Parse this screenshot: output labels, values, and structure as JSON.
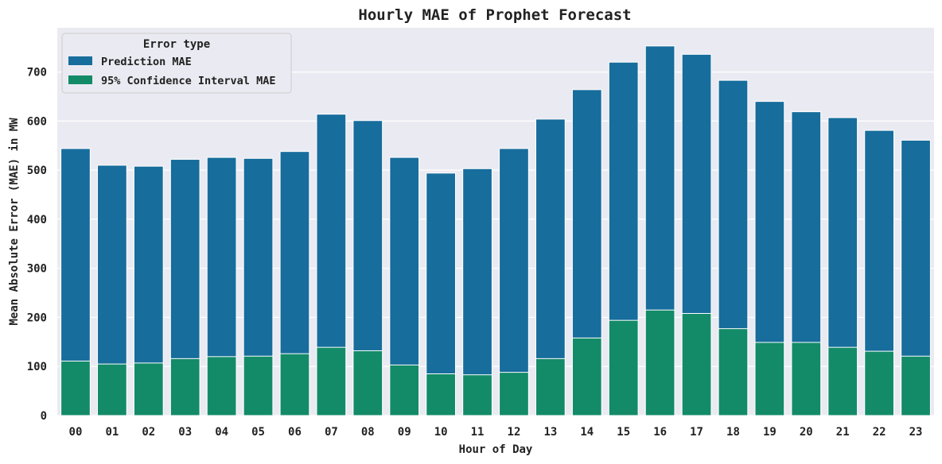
{
  "chart_data": {
    "type": "bar",
    "title": "Hourly MAE of Prophet Forecast",
    "xlabel": "Hour of Day",
    "ylabel": "Mean Absolute Error (MAE) in MW",
    "categories": [
      "00",
      "01",
      "02",
      "03",
      "04",
      "05",
      "06",
      "07",
      "08",
      "09",
      "10",
      "11",
      "12",
      "13",
      "14",
      "15",
      "16",
      "17",
      "18",
      "19",
      "20",
      "21",
      "22",
      "23"
    ],
    "ylim": [
      0,
      790
    ],
    "yticks": [
      0,
      100,
      200,
      300,
      400,
      500,
      600,
      700
    ],
    "grid": true,
    "legend": {
      "title": "Error type",
      "placement": "top-left"
    },
    "series": [
      {
        "name": "Prediction MAE",
        "color": "#176d9c",
        "values": [
          544,
          510,
          508,
          522,
          526,
          524,
          538,
          614,
          601,
          526,
          494,
          503,
          544,
          604,
          664,
          720,
          753,
          736,
          683,
          640,
          619,
          607,
          581,
          561
        ]
      },
      {
        "name": "95% Confidence Interval MAE",
        "color": "#138b68",
        "values": [
          111,
          105,
          107,
          116,
          120,
          121,
          126,
          139,
          132,
          103,
          85,
          83,
          88,
          116,
          158,
          194,
          215,
          208,
          177,
          149,
          149,
          139,
          131,
          121
        ]
      }
    ],
    "plot_background": "#eaeaf2",
    "grid_color": "#ffffff"
  }
}
